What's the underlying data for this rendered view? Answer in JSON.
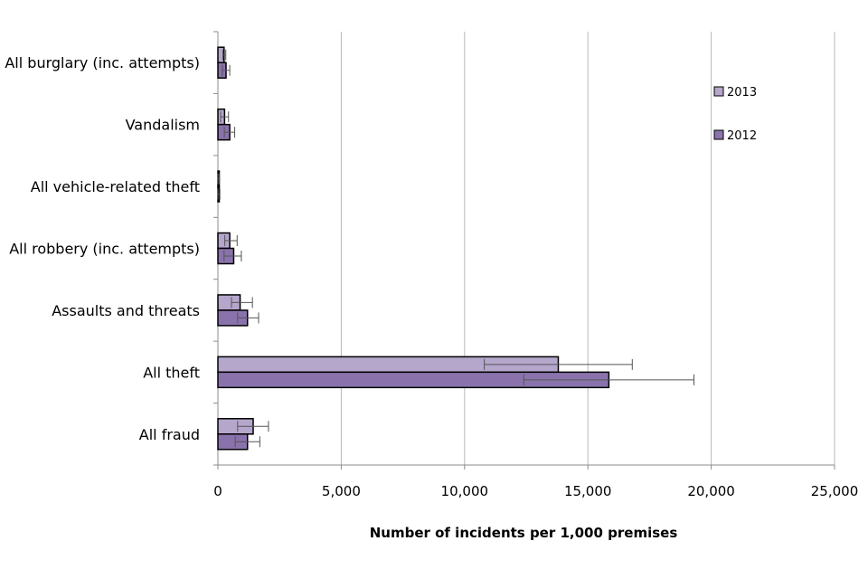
{
  "chart_data": {
    "type": "bar",
    "orientation": "horizontal",
    "categories": [
      "All burglary (inc. attempts)",
      "Vandalism",
      "All vehicle-related theft",
      "All robbery (inc. attempts)",
      "Assaults and threats",
      "All theft",
      "All fraud"
    ],
    "series": [
      {
        "name": "2013",
        "color": "#b5a6cc",
        "values": [
          250,
          270,
          40,
          480,
          900,
          13800,
          1430
        ],
        "error_low": [
          200,
          110,
          0,
          280,
          550,
          10800,
          800
        ],
        "error_high": [
          320,
          430,
          60,
          780,
          1400,
          16800,
          2050
        ]
      },
      {
        "name": "2012",
        "color": "#8a73ac",
        "values": [
          330,
          480,
          50,
          640,
          1200,
          15850,
          1200
        ],
        "error_low": [
          180,
          260,
          0,
          250,
          800,
          12400,
          700
        ],
        "error_high": [
          480,
          680,
          80,
          950,
          1650,
          19300,
          1700
        ]
      }
    ],
    "title": "",
    "xlabel": "Number of incidents per 1,000 premises",
    "ylabel": "",
    "xlim": [
      0,
      25000
    ],
    "xticks": [
      0,
      5000,
      10000,
      15000,
      20000,
      25000
    ],
    "xtick_labels": [
      "0",
      "5,000",
      "10,000",
      "15,000",
      "20,000",
      "25,000"
    ],
    "grid": "vertical",
    "legend_position": "top-right",
    "error_bars": true
  }
}
